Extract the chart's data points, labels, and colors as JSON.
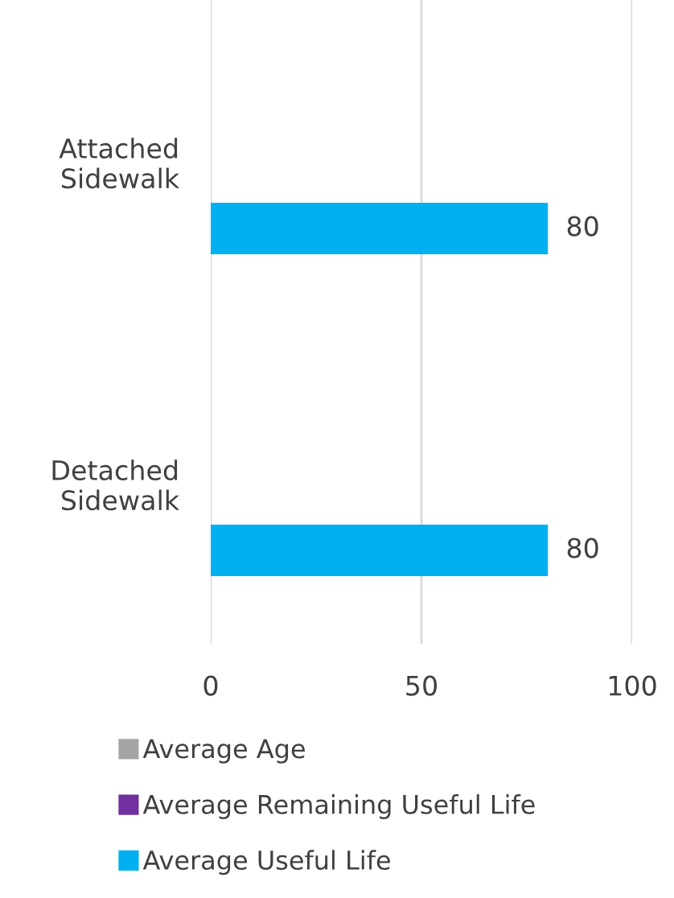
{
  "chart_data": {
    "type": "bar",
    "orientation": "horizontal",
    "categories": [
      "Attached\nSidewalk",
      "Detached\nSidewalk"
    ],
    "series": [
      {
        "name": "Average Age",
        "color": "#a5a5a5",
        "values": [
          null,
          null
        ]
      },
      {
        "name": "Average Remaining Useful Life",
        "color": "#7030a0",
        "values": [
          null,
          null
        ]
      },
      {
        "name": "Average Useful Life",
        "color": "#00b0f0",
        "values": [
          80,
          80
        ],
        "value_labels": [
          "80",
          "80"
        ]
      }
    ],
    "xlim": [
      0,
      100
    ],
    "xticks": [
      0,
      50,
      100
    ],
    "grid": "x",
    "legend": "bottom"
  }
}
